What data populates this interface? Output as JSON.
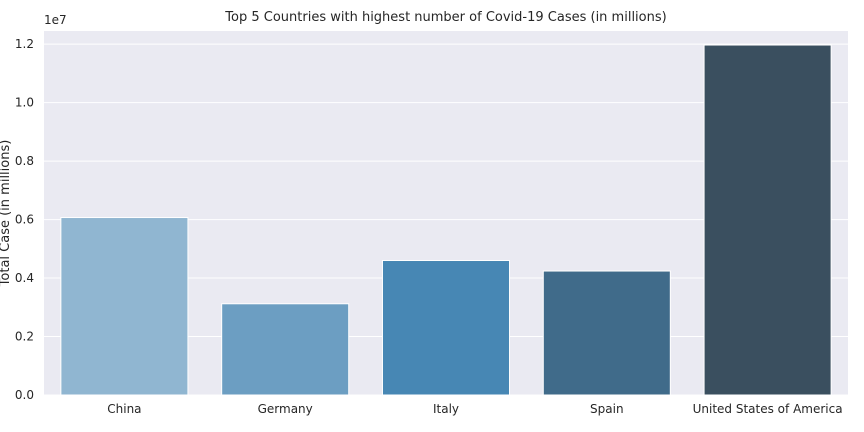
{
  "chart_data": {
    "type": "bar",
    "title": "Top 5 Countries with highest number of Covid-19 Cases (in millions)",
    "xlabel": "",
    "ylabel": "Total Case (in millions)",
    "y_offset_label": "1e7",
    "categories": [
      "China",
      "Germany",
      "Italy",
      "Spain",
      "United States of America"
    ],
    "values": [
      6070000,
      3120000,
      4600000,
      4240000,
      11970000
    ],
    "ylim": [
      0,
      12450000
    ],
    "yticks": [
      0,
      2000000,
      4000000,
      6000000,
      8000000,
      10000000,
      12000000
    ],
    "ytick_labels": [
      "0.0",
      "0.2",
      "0.4",
      "0.6",
      "0.8",
      "1.0",
      "1.2"
    ],
    "grid": true,
    "colors": [
      "#90b6d1",
      "#6c9ec2",
      "#4787b4",
      "#406b8a",
      "#3a4f5f"
    ],
    "background": "#eaeaf2"
  }
}
